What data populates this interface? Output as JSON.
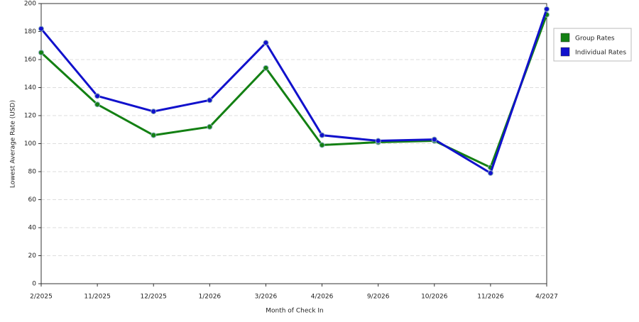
{
  "chart_data": {
    "type": "line",
    "x_label": "Month of Check In",
    "y_label": "Lowest Average Rate (USD)",
    "categories": [
      "2/2025",
      "11/2025",
      "12/2025",
      "1/2026",
      "3/2026",
      "4/2026",
      "9/2026",
      "10/2026",
      "11/2026",
      "4/2027"
    ],
    "series": [
      {
        "name": "Group Rates",
        "color": "#138013",
        "values": [
          165,
          128,
          106,
          112,
          154,
          99,
          101,
          102,
          83,
          192
        ]
      },
      {
        "name": "Individual Rates",
        "color": "#1111cc",
        "values": [
          182,
          134,
          123,
          131,
          172,
          106,
          102,
          103,
          79,
          196
        ]
      }
    ],
    "ylim": [
      0,
      200
    ],
    "yticks": [
      0,
      20,
      40,
      60,
      80,
      100,
      120,
      140,
      160,
      180,
      200
    ],
    "grid": true
  }
}
